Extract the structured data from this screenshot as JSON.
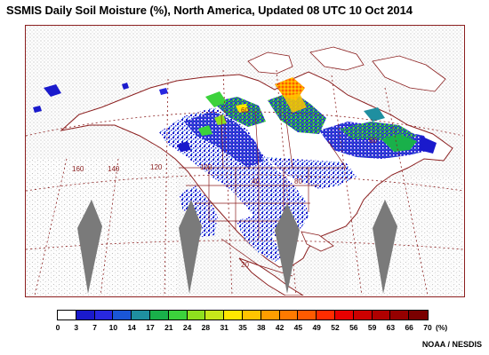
{
  "title": "SSMIS Daily Soil Moisture (%), North America, Updated 08 UTC  10 Oct 2014",
  "credit": "NOAA / NESDIS",
  "colorbar": {
    "unit": "(%)",
    "labels": [
      "0",
      "3",
      "7",
      "10",
      "14",
      "17",
      "21",
      "24",
      "28",
      "31",
      "35",
      "38",
      "42",
      "45",
      "49",
      "52",
      "56",
      "59",
      "63",
      "66",
      "70"
    ],
    "colors": [
      "#ffffff",
      "#1a1acc",
      "#2828e0",
      "#1a56d6",
      "#1f8fa0",
      "#19b04a",
      "#3cd23c",
      "#8ee01e",
      "#c6e61a",
      "#ffe600",
      "#ffc400",
      "#ff9e00",
      "#ff7a00",
      "#ff5a00",
      "#ff2c00",
      "#e80000",
      "#cc0000",
      "#b00000",
      "#960000",
      "#7a0000"
    ]
  },
  "map": {
    "longitude_labels": [
      "160",
      "140",
      "120",
      "100",
      "80",
      "60"
    ],
    "latitude_labels": [
      "60",
      "40",
      "20"
    ],
    "boundary_color": "#8b1f1f",
    "swath_gap_color": "#7a7a7a"
  }
}
